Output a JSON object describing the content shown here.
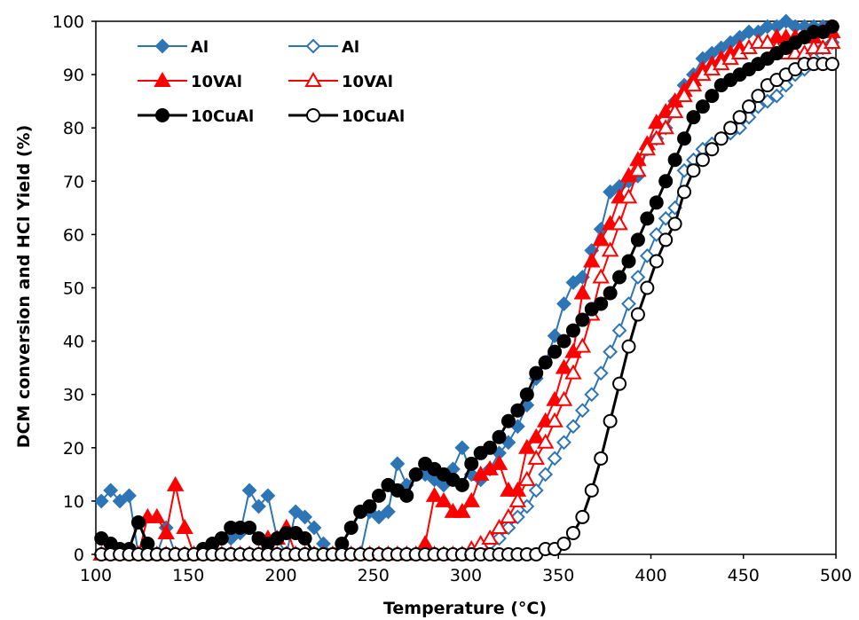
{
  "chart_data": {
    "type": "line",
    "title": "",
    "xlabel": "Temperature (°C)",
    "ylabel": "DCM conversion and HCl Yield (%)",
    "xlim": [
      100,
      500
    ],
    "ylim": [
      0,
      100
    ],
    "xticks": [
      100,
      150,
      200,
      250,
      300,
      350,
      400,
      450,
      500
    ],
    "yticks": [
      0,
      10,
      20,
      30,
      40,
      50,
      60,
      70,
      80,
      90,
      100
    ],
    "grid": false,
    "legend_position": "top-left",
    "series": [
      {
        "name": "Al",
        "color": "#2E75B6",
        "marker": "diamond",
        "filled": true,
        "line_width": 2,
        "x": [
          103,
          108,
          113,
          118,
          123,
          128,
          133,
          138,
          143,
          148,
          153,
          158,
          163,
          168,
          173,
          178,
          183,
          188,
          193,
          198,
          203,
          208,
          213,
          218,
          223,
          228,
          233,
          238,
          243,
          248,
          253,
          258,
          263,
          268,
          273,
          278,
          283,
          288,
          293,
          298,
          303,
          308,
          313,
          318,
          323,
          328,
          333,
          338,
          343,
          348,
          353,
          358,
          363,
          368,
          373,
          378,
          383,
          388,
          393,
          398,
          403,
          408,
          413,
          418,
          423,
          428,
          433,
          438,
          443,
          448,
          453,
          458,
          463,
          468,
          473,
          478,
          483,
          488,
          493,
          498
        ],
        "y": [
          10,
          12,
          10,
          11,
          0,
          0,
          0,
          5,
          0,
          0,
          0,
          0,
          0,
          3,
          3,
          4,
          12,
          9,
          11,
          3,
          0,
          8,
          7,
          5,
          2,
          0,
          1,
          0,
          0,
          8,
          7,
          8,
          17,
          13,
          15,
          15,
          14,
          13,
          16,
          20,
          15,
          14,
          16,
          19,
          21,
          24,
          28,
          33,
          36,
          41,
          47,
          51,
          52,
          57,
          61,
          68,
          69,
          70,
          71,
          76,
          78,
          80,
          85,
          88,
          90,
          93,
          94,
          95,
          96,
          97,
          98,
          98,
          99,
          99,
          100,
          99,
          99,
          99,
          99,
          99
        ]
      },
      {
        "name": "Al",
        "color": "#2E75B6",
        "marker": "diamond",
        "filled": false,
        "line_width": 2,
        "x": [
          103,
          108,
          113,
          118,
          123,
          128,
          133,
          138,
          143,
          148,
          153,
          158,
          163,
          168,
          173,
          178,
          183,
          188,
          193,
          198,
          203,
          208,
          213,
          218,
          223,
          228,
          233,
          238,
          243,
          248,
          253,
          258,
          263,
          268,
          273,
          278,
          283,
          288,
          293,
          298,
          303,
          308,
          313,
          318,
          323,
          328,
          333,
          338,
          343,
          348,
          353,
          358,
          363,
          368,
          373,
          378,
          383,
          388,
          393,
          398,
          403,
          408,
          413,
          418,
          423,
          428,
          433,
          438,
          443,
          448,
          453,
          458,
          463,
          468,
          473,
          478,
          483,
          488,
          493,
          498
        ],
        "y": [
          0,
          0,
          0,
          0,
          0,
          0,
          0,
          0,
          0,
          0,
          0,
          0,
          0,
          0,
          0,
          0,
          0,
          0,
          0,
          0,
          0,
          0,
          0,
          0,
          0,
          0,
          0,
          0,
          0,
          0,
          0,
          0,
          0,
          0,
          0,
          0,
          0,
          0,
          0,
          0,
          0,
          1,
          2,
          3,
          5,
          7,
          9,
          12,
          15,
          18,
          21,
          24,
          27,
          30,
          34,
          38,
          42,
          47,
          52,
          56,
          60,
          63,
          65,
          72,
          74,
          76,
          77,
          78,
          79,
          80,
          82,
          84,
          85,
          86,
          88,
          90,
          91,
          93,
          95,
          96
        ]
      },
      {
        "name": "10VAl",
        "color": "#FF0000",
        "marker": "triangle",
        "filled": true,
        "line_width": 2,
        "x": [
          103,
          108,
          113,
          118,
          123,
          128,
          133,
          138,
          143,
          148,
          153,
          158,
          163,
          168,
          173,
          178,
          183,
          188,
          193,
          198,
          203,
          208,
          213,
          218,
          223,
          228,
          233,
          238,
          243,
          248,
          253,
          258,
          263,
          268,
          273,
          278,
          283,
          288,
          293,
          298,
          303,
          308,
          313,
          318,
          323,
          328,
          333,
          338,
          343,
          348,
          353,
          358,
          363,
          368,
          373,
          378,
          383,
          388,
          393,
          398,
          403,
          408,
          413,
          418,
          423,
          428,
          433,
          438,
          443,
          448,
          453,
          458,
          463,
          468,
          473,
          478,
          483,
          488,
          493,
          498
        ],
        "y": [
          0,
          0,
          0,
          0,
          0,
          7,
          7,
          4,
          13,
          5,
          0,
          0,
          0,
          0,
          0,
          0,
          0,
          0,
          3,
          3,
          5,
          0,
          0,
          0,
          0,
          0,
          0,
          0,
          0,
          0,
          0,
          0,
          0,
          0,
          0,
          2,
          11,
          10,
          8,
          8,
          10,
          15,
          16,
          17,
          12,
          12,
          20,
          22,
          25,
          29,
          35,
          38,
          49,
          55,
          59,
          62,
          67,
          71,
          74,
          77,
          81,
          83,
          85,
          87,
          89,
          91,
          92,
          93,
          94,
          95,
          95,
          96,
          96,
          97,
          97,
          97,
          97,
          97,
          98,
          98
        ]
      },
      {
        "name": "10VAl",
        "color": "#FF0000",
        "marker": "triangle",
        "filled": false,
        "line_width": 2,
        "x": [
          103,
          108,
          113,
          118,
          123,
          128,
          133,
          138,
          143,
          148,
          153,
          158,
          163,
          168,
          173,
          178,
          183,
          188,
          193,
          198,
          203,
          208,
          213,
          218,
          223,
          228,
          233,
          238,
          243,
          248,
          253,
          258,
          263,
          268,
          273,
          278,
          283,
          288,
          293,
          298,
          303,
          308,
          313,
          318,
          323,
          328,
          333,
          338,
          343,
          348,
          353,
          358,
          363,
          368,
          373,
          378,
          383,
          388,
          393,
          398,
          403,
          408,
          413,
          418,
          423,
          428,
          433,
          438,
          443,
          448,
          453,
          458,
          463,
          468,
          473,
          478,
          483,
          488,
          493,
          498
        ],
        "y": [
          0,
          0,
          0,
          0,
          0,
          0,
          0,
          0,
          0,
          0,
          0,
          0,
          0,
          0,
          0,
          0,
          0,
          0,
          0,
          0,
          0,
          0,
          0,
          0,
          0,
          0,
          0,
          0,
          0,
          0,
          0,
          0,
          0,
          0,
          0,
          0,
          0,
          0,
          0,
          0,
          1,
          2,
          3,
          5,
          7,
          10,
          14,
          18,
          21,
          25,
          29,
          34,
          39,
          45,
          52,
          57,
          62,
          67,
          72,
          76,
          78,
          80,
          83,
          86,
          88,
          90,
          91,
          92,
          93,
          94,
          95,
          96,
          96,
          95,
          94,
          94,
          94,
          95,
          95,
          96
        ]
      },
      {
        "name": "10CuAl",
        "color": "#000000",
        "marker": "circle",
        "filled": true,
        "line_width": 3,
        "x": [
          103,
          108,
          113,
          118,
          123,
          128,
          133,
          138,
          143,
          148,
          153,
          158,
          163,
          168,
          173,
          178,
          183,
          188,
          193,
          198,
          203,
          208,
          213,
          218,
          223,
          228,
          233,
          238,
          243,
          248,
          253,
          258,
          263,
          268,
          273,
          278,
          283,
          288,
          293,
          298,
          303,
          308,
          313,
          318,
          323,
          328,
          333,
          338,
          343,
          348,
          353,
          358,
          363,
          368,
          373,
          378,
          383,
          388,
          393,
          398,
          403,
          408,
          413,
          418,
          423,
          428,
          433,
          438,
          443,
          448,
          453,
          458,
          463,
          468,
          473,
          478,
          483,
          488,
          493,
          498
        ],
        "y": [
          3,
          2,
          1,
          1,
          6,
          2,
          0,
          0,
          0,
          0,
          0,
          1,
          2,
          3,
          5,
          5,
          5,
          3,
          2,
          3,
          4,
          4,
          3,
          0,
          0,
          0,
          2,
          5,
          8,
          9,
          11,
          13,
          12,
          11,
          15,
          17,
          16,
          15,
          14,
          13,
          17,
          19,
          20,
          22,
          25,
          27,
          30,
          34,
          36,
          38,
          40,
          42,
          44,
          46,
          47,
          49,
          52,
          55,
          59,
          63,
          66,
          70,
          74,
          78,
          82,
          84,
          86,
          88,
          89,
          90,
          91,
          92,
          93,
          94,
          95,
          96,
          97,
          98,
          98,
          99
        ]
      },
      {
        "name": "10CuAl",
        "color": "#000000",
        "marker": "circle",
        "filled": false,
        "line_width": 3,
        "x": [
          103,
          108,
          113,
          118,
          123,
          128,
          133,
          138,
          143,
          148,
          153,
          158,
          163,
          168,
          173,
          178,
          183,
          188,
          193,
          198,
          203,
          208,
          213,
          218,
          223,
          228,
          233,
          238,
          243,
          248,
          253,
          258,
          263,
          268,
          273,
          278,
          283,
          288,
          293,
          298,
          303,
          308,
          313,
          318,
          323,
          328,
          333,
          338,
          343,
          348,
          353,
          358,
          363,
          368,
          373,
          378,
          383,
          388,
          393,
          398,
          403,
          408,
          413,
          418,
          423,
          428,
          433,
          438,
          443,
          448,
          453,
          458,
          463,
          468,
          473,
          478,
          483,
          488,
          493,
          498
        ],
        "y": [
          0,
          0,
          0,
          0,
          0,
          0,
          0,
          0,
          0,
          0,
          0,
          0,
          0,
          0,
          0,
          0,
          0,
          0,
          0,
          0,
          0,
          0,
          0,
          0,
          0,
          0,
          0,
          0,
          0,
          0,
          0,
          0,
          0,
          0,
          0,
          0,
          0,
          0,
          0,
          0,
          0,
          0,
          0,
          0,
          0,
          0,
          0,
          0,
          1,
          1,
          2,
          4,
          7,
          12,
          18,
          25,
          32,
          39,
          45,
          50,
          55,
          59,
          62,
          68,
          72,
          74,
          76,
          78,
          80,
          82,
          84,
          86,
          88,
          89,
          90,
          91,
          92,
          92,
          92,
          92
        ]
      }
    ]
  }
}
